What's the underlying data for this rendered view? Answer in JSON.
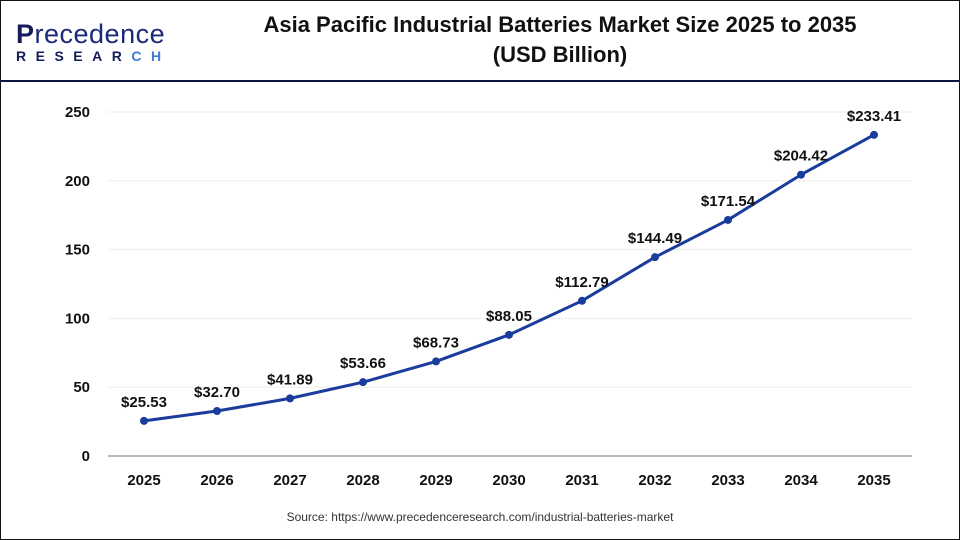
{
  "logo": {
    "line1": "Precedence",
    "line2": "RESEARCH"
  },
  "title_line1": "Asia Pacific Industrial Batteries Market Size 2025 to 2035",
  "title_line2": "(USD Billion)",
  "source": "Source: https://www.precedenceresearch.com/industrial-batteries-market",
  "chart_data": {
    "type": "line",
    "title": "Asia Pacific Industrial Batteries Market Size 2025 to 2035 (USD Billion)",
    "categories": [
      "2025",
      "2026",
      "2027",
      "2028",
      "2029",
      "2030",
      "2031",
      "2032",
      "2033",
      "2034",
      "2035"
    ],
    "values": [
      25.53,
      32.7,
      41.89,
      53.66,
      68.73,
      88.05,
      112.79,
      144.49,
      171.54,
      204.42,
      233.41
    ],
    "data_labels": [
      "$25.53",
      "$32.70",
      "$41.89",
      "$53.66",
      "$68.73",
      "$88.05",
      "$112.79",
      "$144.49",
      "$171.54",
      "$204.42",
      "$233.41"
    ],
    "yticks": [
      0,
      50,
      100,
      150,
      200,
      250
    ],
    "ylim": [
      0,
      250
    ],
    "grid": true,
    "line_color": "#1a3c9c"
  }
}
